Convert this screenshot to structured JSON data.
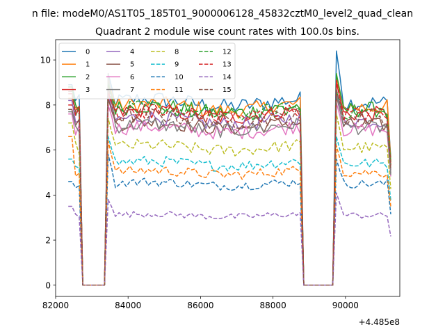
{
  "figure": {
    "suptitle": "n file: modeM0/AS1T05_185T01_9000006128_45832cztM0_level2_quad_clean",
    "title": "Quadrant 2 module wise count rates with 100.0s bins.",
    "offset_label": "+4.485e8"
  },
  "chart_data": {
    "type": "line",
    "title": "Quadrant 2 module wise count rates with 100.0s bins.",
    "xlabel": "",
    "ylabel": "",
    "x_offset": 448500000,
    "xlim": [
      82000,
      91500
    ],
    "ylim": [
      -0.5,
      10.9
    ],
    "xticks": [
      82000,
      84000,
      86000,
      88000,
      90000
    ],
    "xtick_labels": [
      "82000",
      "84000",
      "86000",
      "88000",
      "90000"
    ],
    "yticks": [
      0,
      2,
      4,
      6,
      8,
      10
    ],
    "ytick_labels": [
      "0",
      "2",
      "4",
      "6",
      "8",
      "10"
    ],
    "grid": false,
    "legend_position": "upper-left",
    "legend_columns": 4,
    "bin_seconds": 100,
    "segments": [
      {
        "x_start": 82350,
        "x_end": 82650,
        "post": 82750
      },
      {
        "pre": 83350,
        "x_start": 83450,
        "x_end": 88750,
        "post": 88850
      },
      {
        "pre": 89650,
        "x_start": 89750,
        "x_end": 91250
      }
    ],
    "gap_value": 0,
    "series": [
      {
        "name": "0",
        "color": "#1f77b4",
        "dashed": false,
        "level": 8.1,
        "peaks": [
          8.9,
          9.4,
          10.4
        ]
      },
      {
        "name": "1",
        "color": "#ff7f0e",
        "dashed": false,
        "level": 7.9,
        "peaks": [
          8.3,
          9.1,
          9.2
        ]
      },
      {
        "name": "2",
        "color": "#2ca02c",
        "dashed": false,
        "level": 7.8,
        "peaks": [
          8.8,
          9.0,
          9.4
        ]
      },
      {
        "name": "3",
        "color": "#d62728",
        "dashed": false,
        "level": 7.6,
        "peaks": [
          8.0,
          8.5,
          9.0
        ]
      },
      {
        "name": "4",
        "color": "#9467bd",
        "dashed": false,
        "level": 7.3,
        "peaks": [
          8.2,
          8.4,
          8.6
        ]
      },
      {
        "name": "5",
        "color": "#8c564b",
        "dashed": false,
        "level": 7.1,
        "peaks": [
          7.8,
          8.3,
          8.4
        ]
      },
      {
        "name": "6",
        "color": "#e377c2",
        "dashed": false,
        "level": 6.9,
        "peaks": [
          7.6,
          8.0,
          8.1
        ]
      },
      {
        "name": "7",
        "color": "#7f7f7f",
        "dashed": false,
        "level": 7.0,
        "peaks": [
          7.7,
          9.4,
          8.5
        ]
      },
      {
        "name": "8",
        "color": "#bcbd22",
        "dashed": true,
        "level": 6.1,
        "peaks": [
          7.2,
          7.4,
          7.6
        ]
      },
      {
        "name": "9",
        "color": "#17becf",
        "dashed": true,
        "level": 5.4,
        "peaks": [
          5.6,
          6.6,
          6.6
        ]
      },
      {
        "name": "10",
        "color": "#1f77b4",
        "dashed": true,
        "level": 4.5,
        "peaks": [
          4.6,
          5.8,
          5.6
        ]
      },
      {
        "name": "11",
        "color": "#ff7f0e",
        "dashed": true,
        "level": 5.0,
        "peaks": [
          6.6,
          6.4,
          6.2
        ]
      },
      {
        "name": "12",
        "color": "#2ca02c",
        "dashed": true,
        "level": 7.7,
        "peaks": [
          8.8,
          8.9,
          8.6
        ]
      },
      {
        "name": "13",
        "color": "#d62728",
        "dashed": true,
        "level": 7.6,
        "peaks": [
          8.5,
          8.6,
          9.1
        ]
      },
      {
        "name": "14",
        "color": "#9467bd",
        "dashed": true,
        "level": 3.1,
        "peaks": [
          3.5,
          3.8,
          4.1
        ]
      },
      {
        "name": "15",
        "color": "#8c564b",
        "dashed": true,
        "level": 7.4,
        "peaks": [
          8.6,
          8.8,
          8.7
        ]
      }
    ]
  }
}
